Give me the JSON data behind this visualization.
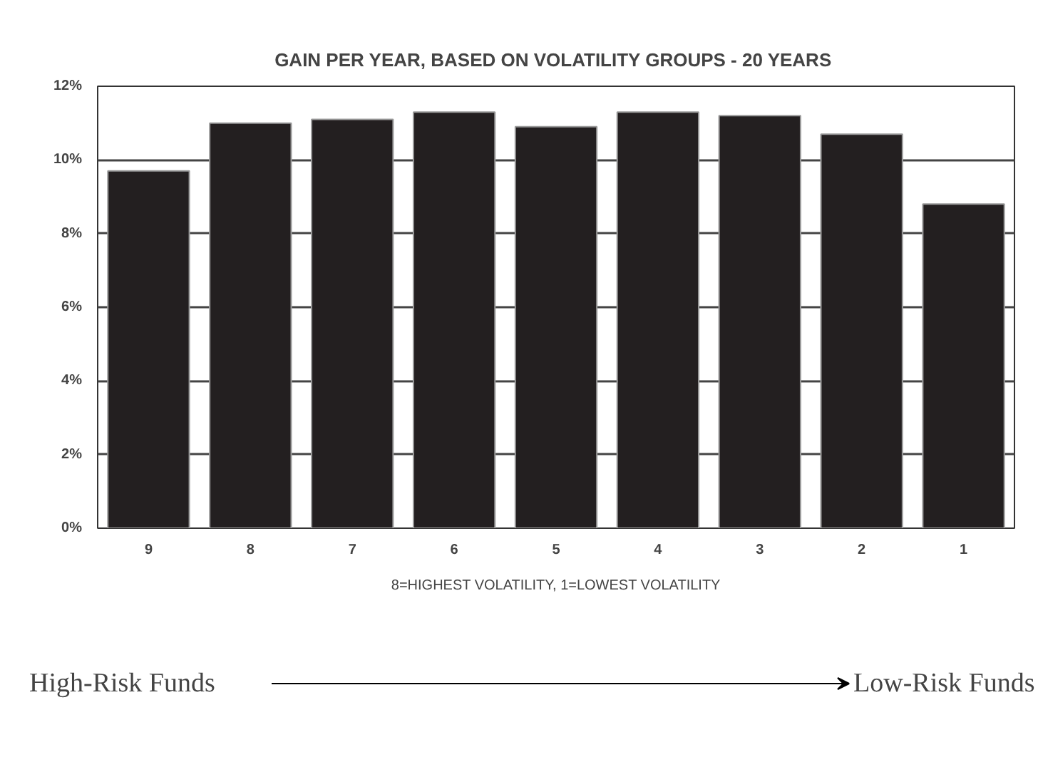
{
  "chart_data": {
    "type": "bar",
    "title": "GAIN PER YEAR,  BASED ON VOLATILITY GROUPS - 20 YEARS",
    "xlabel": "8=HIGHEST VOLATILITY, 1=LOWEST VOLATILITY",
    "categories": [
      "9",
      "8",
      "7",
      "6",
      "5",
      "4",
      "3",
      "2",
      "1"
    ],
    "values": [
      9.7,
      11.0,
      11.1,
      11.3,
      10.9,
      11.3,
      11.2,
      10.7,
      8.8
    ],
    "color": "#231f20",
    "ylim": [
      0,
      12
    ],
    "yticks": [
      {
        "value": 0,
        "label": "0%"
      },
      {
        "value": 2,
        "label": "2%"
      },
      {
        "value": 4,
        "label": "4%"
      },
      {
        "value": 6,
        "label": "6%"
      },
      {
        "value": 8,
        "label": "8%"
      },
      {
        "value": 10,
        "label": "10%"
      },
      {
        "value": 12,
        "label": "12%"
      }
    ],
    "grid": "y",
    "annotations": [
      "High-Risk Funds",
      "Low-Risk Funds"
    ]
  }
}
